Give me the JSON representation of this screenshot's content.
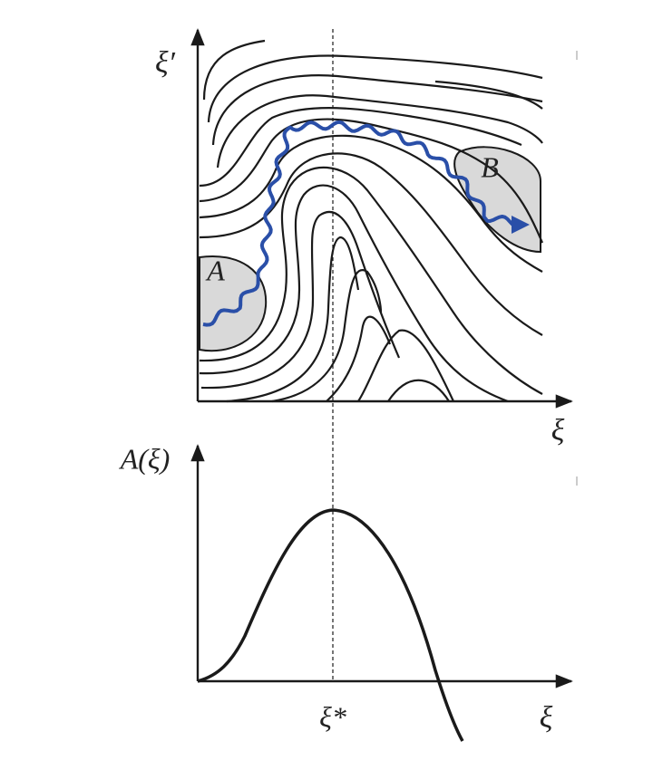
{
  "top_panel": {
    "y_label": "ξ′",
    "x_label": "ξ",
    "regions": [
      "A",
      "B"
    ]
  },
  "bottom_panel": {
    "y_label": "A(ξ)",
    "x_label": "ξ",
    "marker_label": "ξ*"
  }
}
